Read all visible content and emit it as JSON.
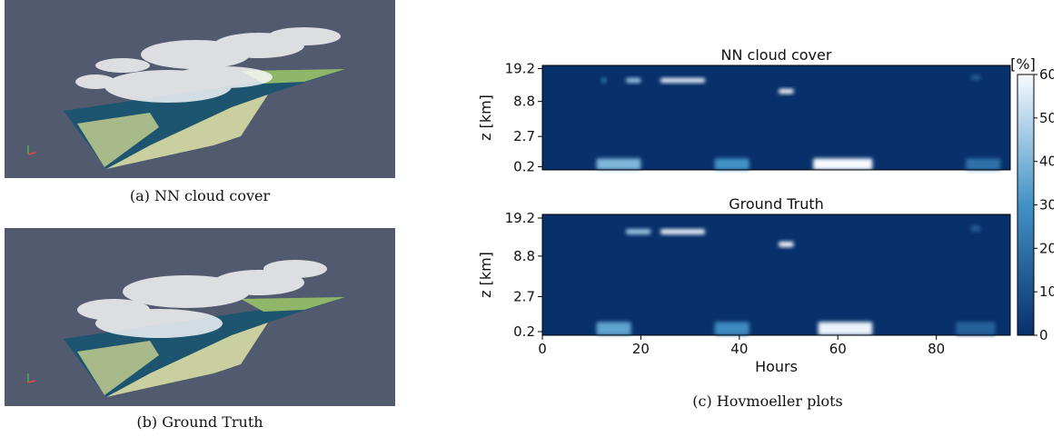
{
  "captions": {
    "a": "(a) NN cloud cover",
    "b": "(b) Ground Truth",
    "c": "(c) Hovmoeller plots"
  },
  "colors": {
    "render_background": "#525a6f",
    "cmap_low": "#08306b",
    "cmap_mid": "#4292c6",
    "cmap_high": "#f7fbff"
  },
  "chart_data": [
    {
      "type": "heatmap",
      "title": "NN cloud cover",
      "xlabel": "Hours",
      "ylabel": "z [km]",
      "xlim": [
        0,
        95
      ],
      "x_ticks": [
        "0",
        "20",
        "40",
        "60",
        "80"
      ],
      "y_ticks": [
        "19.2",
        "8.8",
        "2.7",
        "0.2"
      ],
      "zlim": [
        0,
        60
      ],
      "blobs": [
        {
          "t_start": 11,
          "t_end": 20,
          "z_km": 0.2,
          "value": 40
        },
        {
          "t_start": 35,
          "t_end": 42,
          "z_km": 0.2,
          "value": 30
        },
        {
          "t_start": 55,
          "t_end": 67,
          "z_km": 0.2,
          "value": 60
        },
        {
          "t_start": 86,
          "t_end": 93,
          "z_km": 0.2,
          "value": 20
        },
        {
          "t_start": 17,
          "t_end": 20,
          "z_km": 14.5,
          "value": 45
        },
        {
          "t_start": 24,
          "t_end": 33,
          "z_km": 14.5,
          "value": 58
        },
        {
          "t_start": 48,
          "t_end": 51,
          "z_km": 11.2,
          "value": 60
        },
        {
          "t_start": 12,
          "t_end": 13,
          "z_km": 14.5,
          "value": 25
        },
        {
          "t_start": 87,
          "t_end": 89,
          "z_km": 15.5,
          "value": 15
        }
      ]
    },
    {
      "type": "heatmap",
      "title": "Ground Truth",
      "xlabel": "Hours",
      "ylabel": "z [km]",
      "xlim": [
        0,
        95
      ],
      "x_ticks": [
        "0",
        "20",
        "40",
        "60",
        "80"
      ],
      "y_ticks": [
        "19.2",
        "8.8",
        "2.7",
        "0.2"
      ],
      "zlim": [
        0,
        60
      ],
      "blobs": [
        {
          "t_start": 11,
          "t_end": 18,
          "z_km": 0.2,
          "value": 35
        },
        {
          "t_start": 35,
          "t_end": 42,
          "z_km": 0.2,
          "value": 28
        },
        {
          "t_start": 56,
          "t_end": 67,
          "z_km": 0.2,
          "value": 58
        },
        {
          "t_start": 84,
          "t_end": 92,
          "z_km": 0.2,
          "value": 15
        },
        {
          "t_start": 17,
          "t_end": 22,
          "z_km": 14.5,
          "value": 45
        },
        {
          "t_start": 24,
          "t_end": 33,
          "z_km": 14.5,
          "value": 58
        },
        {
          "t_start": 48,
          "t_end": 51,
          "z_km": 11.2,
          "value": 60
        },
        {
          "t_start": 87,
          "t_end": 89,
          "z_km": 15.5,
          "value": 15
        }
      ]
    }
  ],
  "colorbar": {
    "label": "[%]",
    "ticks": [
      "0",
      "10",
      "20",
      "30",
      "40",
      "50",
      "60"
    ],
    "range": [
      0,
      60
    ]
  }
}
